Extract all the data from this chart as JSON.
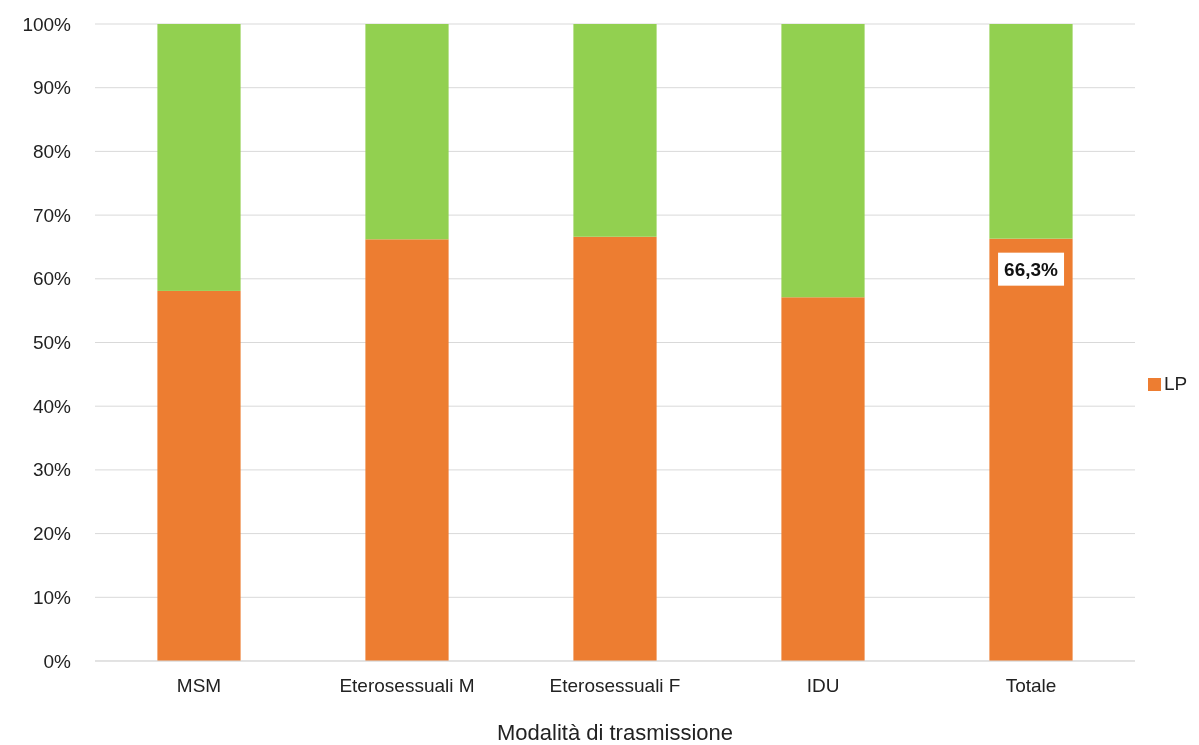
{
  "chart_data": {
    "type": "bar",
    "stacked": true,
    "xlabel": "Modalità di trasmissione",
    "categories": [
      "MSM",
      "Eterosessuali M",
      "Eterosessuali F",
      "IDU",
      "Totale"
    ],
    "series": [
      {
        "name": "LP",
        "color": "#ed7d31",
        "values": [
          58.1,
          66.2,
          66.6,
          57.1,
          66.3
        ],
        "value_labels": [
          null,
          null,
          null,
          null,
          "66,3%"
        ]
      },
      {
        "color": "#92d050",
        "values": [
          41.9,
          33.8,
          33.4,
          42.9,
          33.7
        ]
      }
    ],
    "ylim": [
      0,
      100
    ],
    "yticks": [
      {
        "value": 0,
        "label": "0%"
      },
      {
        "value": 10,
        "label": "10%"
      },
      {
        "value": 20,
        "label": "20%"
      },
      {
        "value": 30,
        "label": "30%"
      },
      {
        "value": 40,
        "label": "40%"
      },
      {
        "value": 50,
        "label": "50%"
      },
      {
        "value": 60,
        "label": "60%"
      },
      {
        "value": 70,
        "label": "70%"
      },
      {
        "value": 80,
        "label": "80%"
      },
      {
        "value": 90,
        "label": "90%"
      },
      {
        "value": 100,
        "label": "100%"
      }
    ],
    "grid": "y",
    "legend": "right"
  }
}
